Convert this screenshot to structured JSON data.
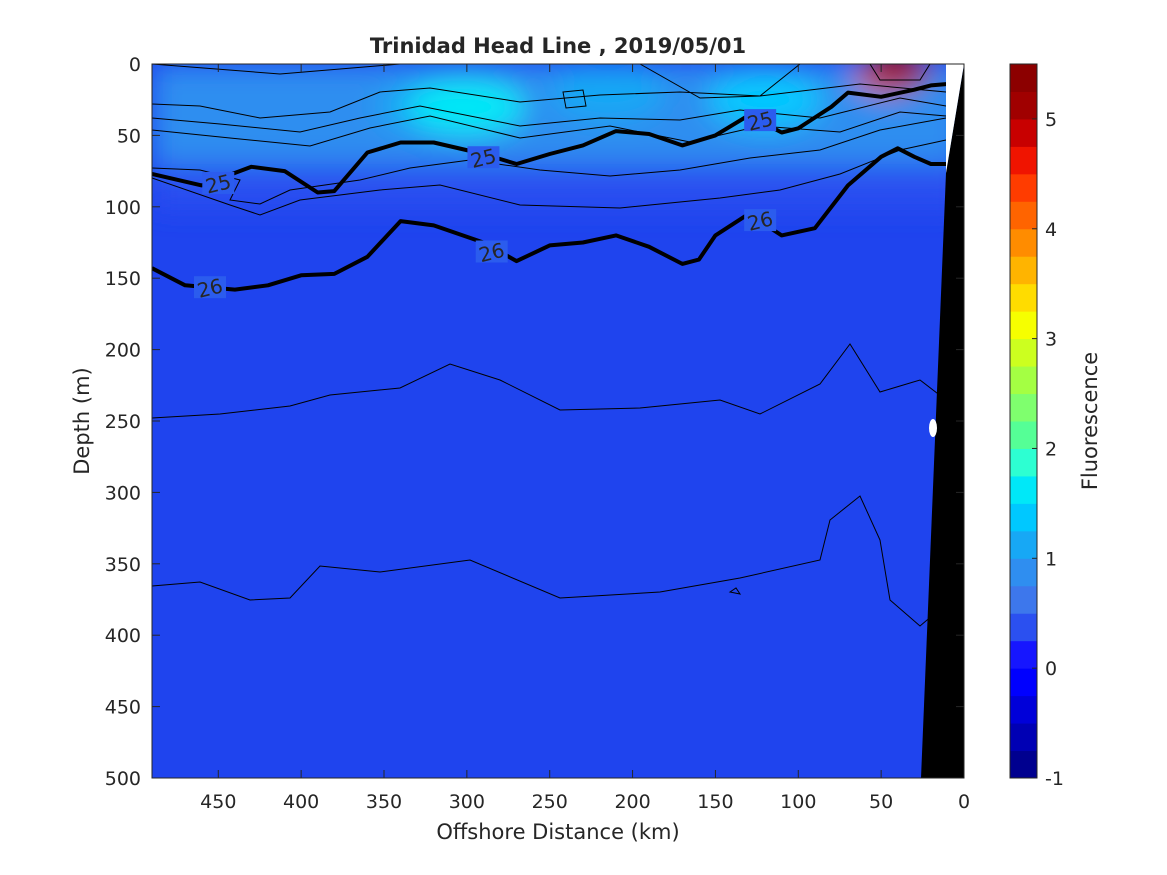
{
  "chart_data": {
    "type": "heatmap",
    "title": "Trinidad Head Line , 2019/05/01",
    "xlabel": "Offshore Distance (km)",
    "ylabel": "Depth (m)",
    "colorbar_label": "Fluorescence",
    "xlim": [
      490,
      0
    ],
    "ylim": [
      0,
      500
    ],
    "x_reversed": true,
    "y_reversed": true,
    "xticks": [
      450,
      400,
      350,
      300,
      250,
      200,
      150,
      100,
      50,
      0
    ],
    "yticks": [
      0,
      50,
      100,
      150,
      200,
      250,
      300,
      350,
      400,
      450,
      500
    ],
    "colorbar": {
      "range": [
        -1,
        5.5
      ],
      "ticks": [
        -1,
        0,
        1,
        2,
        3,
        4,
        5
      ],
      "colors": [
        "#00008f",
        "#0000b4",
        "#0000d9",
        "#0000ff",
        "#1616ff",
        "#2b50f0",
        "#3d77ec",
        "#2f8ef0",
        "#17a8f5",
        "#00c8ff",
        "#00e8f8",
        "#2dffd2",
        "#55ff96",
        "#7fff6e",
        "#a4ff43",
        "#ccff1f",
        "#f6ff00",
        "#ffdc00",
        "#ffb400",
        "#ff8c00",
        "#ff6400",
        "#ff3c00",
        "#f01400",
        "#c80000",
        "#a00000",
        "#8c0000"
      ]
    },
    "fields": {
      "background_fluorescence": 0.05,
      "surface_patches": [
        {
          "x_km": 320,
          "depth_m": 30,
          "value": 1.2
        },
        {
          "x_km": 300,
          "depth_m": 30,
          "value": 1.5
        },
        {
          "x_km": 215,
          "depth_m": 20,
          "value": 1.1
        },
        {
          "x_km": 120,
          "depth_m": 25,
          "value": 1.3
        },
        {
          "x_km": 440,
          "depth_m": 20,
          "value": 0.9
        },
        {
          "x_km": 45,
          "depth_m": 8,
          "value": 4.2
        },
        {
          "x_km": 40,
          "depth_m": 5,
          "value": 5.0
        }
      ]
    },
    "series": [
      {
        "name": "25",
        "points": [
          [
            490,
            77
          ],
          [
            460,
            85
          ],
          [
            430,
            72
          ],
          [
            410,
            75
          ],
          [
            390,
            90
          ],
          [
            380,
            89
          ],
          [
            360,
            62
          ],
          [
            340,
            55
          ],
          [
            320,
            55
          ],
          [
            290,
            63
          ],
          [
            270,
            70
          ],
          [
            250,
            63
          ],
          [
            230,
            57
          ],
          [
            210,
            47
          ],
          [
            190,
            49
          ],
          [
            170,
            57
          ],
          [
            150,
            50
          ],
          [
            130,
            36
          ],
          [
            110,
            48
          ],
          [
            100,
            45
          ],
          [
            80,
            30
          ],
          [
            70,
            20
          ],
          [
            50,
            23
          ],
          [
            30,
            18
          ],
          [
            20,
            15
          ],
          [
            10,
            14
          ]
        ]
      },
      {
        "name": "26",
        "points": [
          [
            490,
            143
          ],
          [
            470,
            155
          ],
          [
            440,
            158
          ],
          [
            420,
            155
          ],
          [
            400,
            148
          ],
          [
            380,
            147
          ],
          [
            360,
            135
          ],
          [
            340,
            110
          ],
          [
            320,
            113
          ],
          [
            290,
            125
          ],
          [
            270,
            138
          ],
          [
            250,
            127
          ],
          [
            230,
            125
          ],
          [
            210,
            120
          ],
          [
            190,
            128
          ],
          [
            170,
            140
          ],
          [
            160,
            137
          ],
          [
            150,
            120
          ],
          [
            130,
            105
          ],
          [
            110,
            120
          ],
          [
            90,
            115
          ],
          [
            70,
            85
          ],
          [
            50,
            65
          ],
          [
            40,
            59
          ],
          [
            30,
            65
          ],
          [
            20,
            70
          ],
          [
            10,
            70
          ]
        ]
      }
    ],
    "contour_labels": [
      {
        "text": "25",
        "x_km": 450,
        "depth_m": 84
      },
      {
        "text": "25",
        "x_km": 290,
        "depth_m": 66
      },
      {
        "text": "25",
        "x_km": 123,
        "depth_m": 40
      },
      {
        "text": "26",
        "x_km": 455,
        "depth_m": 157
      },
      {
        "text": "26",
        "x_km": 285,
        "depth_m": 132
      },
      {
        "text": "26",
        "x_km": 123,
        "depth_m": 110
      }
    ]
  }
}
